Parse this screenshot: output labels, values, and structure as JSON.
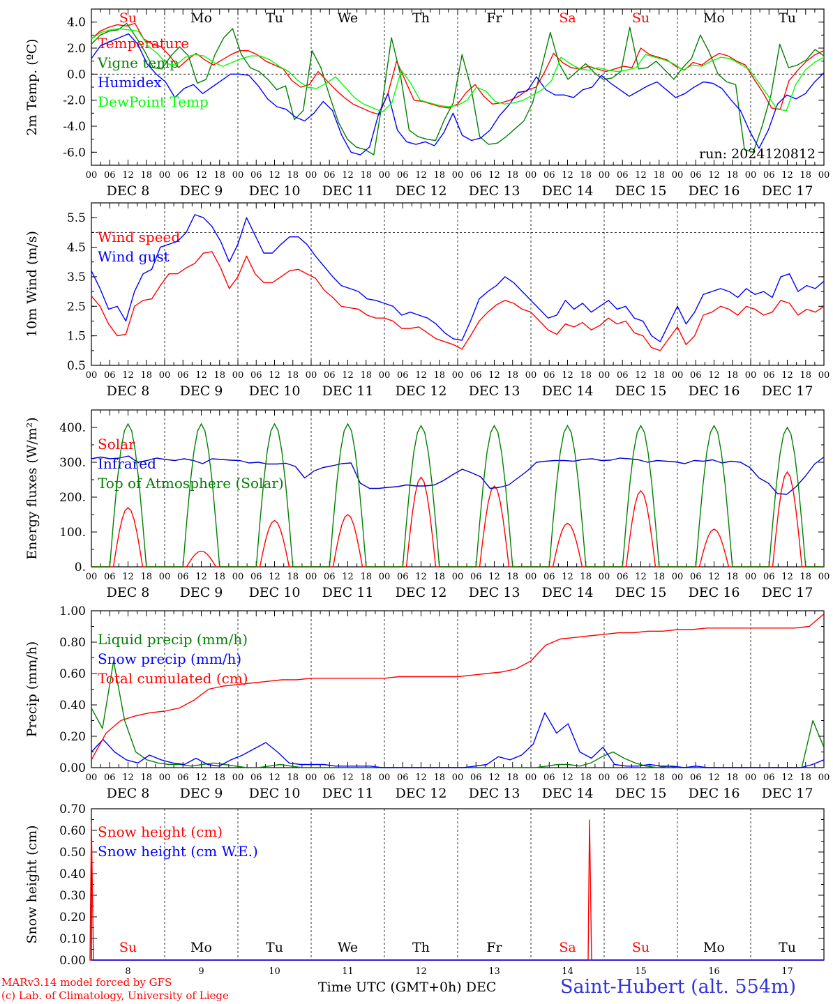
{
  "chart_data": [
    {
      "type": "line",
      "ylabel": "2m Temp. (ºC)",
      "ylim": [
        -7.0,
        5.0
      ],
      "yticks": [
        "4.0",
        "2.0",
        "0.0",
        "-2.0",
        "-4.0",
        "-6.0"
      ],
      "ytick_values": [
        4,
        2,
        0,
        -2,
        -4,
        -6
      ],
      "ref_lines": [
        0
      ],
      "day_names": [
        "Su",
        "Mo",
        "Tu",
        "We",
        "Th",
        "Fr",
        "Sa",
        "Su",
        "Mo",
        "Tu"
      ],
      "run_label": "run: 2024120812",
      "legend": "top-left",
      "series": [
        {
          "name": "Temperature",
          "color": "#ff0000",
          "values": [
            2.7,
            3.3,
            3.6,
            3.8,
            3.7,
            3.9,
            2.7,
            2.3,
            2.1,
            1.4,
            0.5,
            1.1,
            1.6,
            1.1,
            0.7,
            1.1,
            1.5,
            1.8,
            1.8,
            1.5,
            1.0,
            0.7,
            0.4,
            -0.5,
            -1.0,
            -0.8,
            0.2,
            -0.5,
            -1.2,
            -1.8,
            -2.3,
            -2.6,
            -2.9,
            -3.1,
            -1.5,
            1.0,
            -0.5,
            -2.0,
            -2.1,
            -2.3,
            -2.5,
            -2.6,
            -2.3,
            -1.4,
            -0.8,
            -1.7,
            -2.3,
            -2.2,
            -2.0,
            -1.7,
            -1.2,
            -1.0,
            0.2,
            1.6,
            0.9,
            0.5,
            0.4,
            0.6,
            0.4,
            0.2,
            0.4,
            0.6,
            0.5,
            2.0,
            1.5,
            1.3,
            1.1,
            0.6,
            0.3,
            0.9,
            0.7,
            1.2,
            1.6,
            1.4,
            1.0,
            0.7,
            -0.4,
            -1.4,
            -2.6,
            -2.7,
            -0.5,
            0.3,
            1.0,
            1.5,
            1.8
          ]
        },
        {
          "name": "Vigne temp",
          "color": "#008000",
          "values": [
            2.3,
            3.0,
            3.3,
            3.4,
            3.9,
            2.9,
            1.8,
            0.5,
            0.4,
            1.4,
            2.1,
            1.4,
            -0.7,
            -0.4,
            1.5,
            2.8,
            3.5,
            1.5,
            0.5,
            0.2,
            -0.4,
            -1.2,
            -0.9,
            -3.5,
            -2.8,
            1.8,
            0.5,
            -1.7,
            -3.7,
            -5.0,
            -5.6,
            -5.8,
            -6.2,
            -2.0,
            2.8,
            0.0,
            -4.3,
            -4.8,
            -5.0,
            -5.1,
            -3.5,
            -2.2,
            1.5,
            -1.0,
            -4.8,
            -5.4,
            -5.3,
            -4.8,
            -4.2,
            -3.6,
            -2.2,
            0.5,
            3.2,
            0.8,
            -0.4,
            0.2,
            0.8,
            0.1,
            -0.4,
            -0.3,
            0.2,
            3.6,
            0.4,
            0.5,
            1.0,
            0.3,
            -0.4,
            0.5,
            1.2,
            3.0,
            1.7,
            0.0,
            -0.6,
            -0.8,
            -5.8,
            -6.0,
            -4.0,
            -1.6,
            2.3,
            0.5,
            0.7,
            1.1,
            1.9,
            1.4
          ]
        },
        {
          "name": "Humidex",
          "color": "#0000ff",
          "values": [
            1.2,
            2.2,
            2.5,
            2.8,
            3.1,
            2.3,
            0.8,
            0.0,
            -0.6,
            -1.8,
            -1.1,
            -0.8,
            -1.5,
            -1.0,
            -0.5,
            0.0,
            0.0,
            -0.1,
            -0.9,
            -1.9,
            -2.5,
            -2.7,
            -3.3,
            -3.6,
            -3.0,
            -2.1,
            -2.8,
            -4.7,
            -6.0,
            -6.2,
            -5.6,
            -3.0,
            -1.5,
            -4.3,
            -5.2,
            -5.4,
            -5.2,
            -5.5,
            -4.5,
            -3.0,
            -4.7,
            -5.1,
            -4.9,
            -4.3,
            -3.2,
            -2.4,
            -1.4,
            -1.3,
            -0.2,
            -1.2,
            -1.6,
            -1.6,
            -1.8,
            -1.2,
            -1.0,
            -0.1,
            -0.7,
            -1.2,
            -1.7,
            -1.3,
            -0.9,
            -0.6,
            -1.2,
            -1.8,
            -1.5,
            -1.0,
            -0.6,
            -0.7,
            -1.1,
            -2.0,
            -2.8,
            -4.4,
            -5.7,
            -4.3,
            -2.3,
            -1.6,
            -1.9,
            -1.5,
            -0.6,
            0.1
          ]
        },
        {
          "name": "DewPoint Temp",
          "color": "#00ff00",
          "values": [
            2.7,
            3.2,
            3.4,
            3.5,
            3.4,
            3.3,
            2.2,
            1.6,
            0.8,
            0.7,
            1.3,
            1.5,
            1.4,
            0.9,
            0.6,
            0.9,
            1.2,
            1.4,
            1.4,
            1.1,
            0.6,
            0.2,
            -0.5,
            -1.0,
            -1.1,
            -0.7,
            -0.2,
            -1.0,
            -1.8,
            -2.3,
            -2.6,
            -2.9,
            -2.2,
            0.3,
            -0.7,
            -2.0,
            -2.2,
            -2.4,
            -2.5,
            -2.4,
            -2.0,
            -1.0,
            -1.3,
            -2.1,
            -2.3,
            -2.2,
            -2.0,
            -1.6,
            -1.2,
            -0.5,
            1.3,
            0.8,
            0.4,
            0.3,
            0.5,
            0.3,
            0.2,
            0.3,
            0.5,
            1.5,
            1.3,
            1.1,
            0.8,
            0.3,
            0.7,
            0.6,
            1.0,
            1.3,
            1.2,
            0.8,
            0.4,
            -0.6,
            -1.6,
            -2.7,
            -2.8,
            -0.8,
            0.3,
            0.9,
            1.3
          ]
        }
      ]
    },
    {
      "type": "line",
      "ylabel": "10m Wind (m/s)",
      "ylim": [
        0.5,
        6.0
      ],
      "yticks": [
        "5.5",
        "4.5",
        "3.5",
        "2.5",
        "1.5",
        "0.5"
      ],
      "ytick_values": [
        5.5,
        4.5,
        3.5,
        2.5,
        1.5,
        0.5
      ],
      "ref_lines": [
        5.0
      ],
      "legend": "top-left",
      "series": [
        {
          "name": "Wind speed",
          "color": "#ff0000",
          "values": [
            2.85,
            2.5,
            1.9,
            1.5,
            1.55,
            2.5,
            2.7,
            2.75,
            3.2,
            3.6,
            3.6,
            3.8,
            3.95,
            4.3,
            4.35,
            3.8,
            3.1,
            3.5,
            4.2,
            3.6,
            3.3,
            3.3,
            3.5,
            3.7,
            3.75,
            3.6,
            3.45,
            3.05,
            2.8,
            2.5,
            2.45,
            2.4,
            2.2,
            2.1,
            2.1,
            2.0,
            1.75,
            1.75,
            1.8,
            1.6,
            1.4,
            1.3,
            1.2,
            1.05,
            1.5,
            2.0,
            2.3,
            2.55,
            2.7,
            2.6,
            2.4,
            2.3,
            2.0,
            1.7,
            1.55,
            1.9,
            1.8,
            1.95,
            1.7,
            1.85,
            2.1,
            1.9,
            2.0,
            1.6,
            1.5,
            1.1,
            1.0,
            1.4,
            1.8,
            1.2,
            1.5,
            2.2,
            2.3,
            2.5,
            2.4,
            2.2,
            2.5,
            2.4,
            2.2,
            2.3,
            2.7,
            2.6,
            2.2,
            2.4,
            2.3,
            2.5
          ]
        },
        {
          "name": "Wind gust",
          "color": "#0000ff",
          "values": [
            3.7,
            3.1,
            2.4,
            2.5,
            2.0,
            3.0,
            3.6,
            3.75,
            4.5,
            4.6,
            4.7,
            5.0,
            5.6,
            5.5,
            5.2,
            4.7,
            4.0,
            4.6,
            5.5,
            4.9,
            4.3,
            4.3,
            4.6,
            4.85,
            4.85,
            4.6,
            4.2,
            3.85,
            3.5,
            3.2,
            3.1,
            3.0,
            2.75,
            2.7,
            2.6,
            2.5,
            2.2,
            2.3,
            2.2,
            2.1,
            1.9,
            1.6,
            1.4,
            1.35,
            2.0,
            2.75,
            3.0,
            3.2,
            3.5,
            3.3,
            3.0,
            2.7,
            2.4,
            2.1,
            2.2,
            2.7,
            2.4,
            2.6,
            2.3,
            2.5,
            2.7,
            2.4,
            2.5,
            2.1,
            2.0,
            1.5,
            1.3,
            1.9,
            2.5,
            1.9,
            2.3,
            2.9,
            3.0,
            3.1,
            3.0,
            2.8,
            3.1,
            2.9,
            3.0,
            2.8,
            3.5,
            3.6,
            3.0,
            3.2,
            3.1,
            3.35
          ]
        }
      ]
    },
    {
      "type": "line",
      "ylabel": "Energy fluxes (W/m²)",
      "ylim": [
        0,
        450
      ],
      "yticks": [
        "400.",
        "300.",
        "200.",
        "100.",
        "0."
      ],
      "ytick_values": [
        400,
        300,
        200,
        100,
        0
      ],
      "legend": "top-left",
      "series": [
        {
          "name": "Solar",
          "color": "#ff0000",
          "daily_peaks": [
            170,
            45,
            133,
            150,
            257,
            232,
            125,
            218,
            108,
            272
          ]
        },
        {
          "name": "Infrared",
          "color": "#0000cc",
          "values": [
            310,
            315,
            310,
            312,
            318,
            300,
            305,
            312,
            308,
            305,
            310,
            305,
            296,
            310,
            308,
            306,
            305,
            298,
            300,
            295,
            295,
            297,
            288,
            255,
            275,
            285,
            290,
            296,
            298,
            240,
            225,
            225,
            228,
            230,
            235,
            232,
            232,
            235,
            248,
            265,
            280,
            270,
            258,
            225,
            228,
            235,
            255,
            275,
            300,
            303,
            305,
            305,
            303,
            308,
            310,
            305,
            306,
            312,
            310,
            307,
            300,
            305,
            303,
            301,
            296,
            305,
            303,
            307,
            298,
            303,
            300,
            285,
            255,
            240,
            210,
            208,
            230,
            260,
            295,
            315
          ]
        },
        {
          "name": "Top of Atmosphere (Solar)",
          "color": "#008000",
          "daily_peaks": [
            410,
            410,
            410,
            410,
            405,
            405,
            405,
            405,
            405,
            400
          ]
        }
      ]
    },
    {
      "type": "line",
      "ylabel": "Precip (mm/h)",
      "ylim": [
        0,
        1.0
      ],
      "yticks": [
        "1.00",
        "0.80",
        "0.60",
        "0.40",
        "0.20",
        "0.00"
      ],
      "ytick_values": [
        1.0,
        0.8,
        0.6,
        0.4,
        0.2,
        0.0
      ],
      "legend": "top-left",
      "series": [
        {
          "name": "Liquid precip (mm/h)",
          "color": "#008000",
          "values": [
            0.38,
            0.25,
            0.68,
            0.3,
            0.1,
            0.05,
            0.03,
            0.02,
            0.02,
            0.01,
            0.02,
            0.03,
            0.02,
            0.01,
            0.0,
            0.0,
            0.01,
            0.02,
            0.01,
            0.0,
            0.0,
            0.0,
            0.0,
            0.0,
            0.0,
            0.0,
            0.0,
            0.0,
            0.0,
            0.0,
            0.0,
            0.0,
            0.0,
            0.0,
            0.0,
            0.0,
            0.0,
            0.0,
            0.0,
            0.0,
            0.0,
            0.01,
            0.02,
            0.02,
            0.01,
            0.03,
            0.07,
            0.1,
            0.06,
            0.03,
            0.01,
            0.0,
            0.01,
            0.0,
            0.0,
            0.0,
            0.0,
            0.0,
            0.0,
            0.0,
            0.0,
            0.0,
            0.0,
            0.0,
            0.0,
            0.3,
            0.13
          ]
        },
        {
          "name": "Snow precip (mm/h)",
          "color": "#0000ff",
          "values": [
            0.1,
            0.18,
            0.1,
            0.05,
            0.03,
            0.08,
            0.05,
            0.03,
            0.02,
            0.06,
            0.02,
            0.01,
            0.05,
            0.08,
            0.12,
            0.16,
            0.1,
            0.03,
            0.02,
            0.02,
            0.02,
            0.01,
            0.01,
            0.01,
            0.01,
            0.0,
            0.0,
            0.0,
            0.0,
            0.0,
            0.0,
            0.0,
            0.0,
            0.01,
            0.02,
            0.07,
            0.05,
            0.08,
            0.15,
            0.35,
            0.22,
            0.28,
            0.1,
            0.06,
            0.13,
            0.02,
            0.01,
            0.01,
            0.02,
            0.01,
            0.01,
            0.0,
            0.01,
            0.0,
            0.0,
            0.0,
            0.0,
            0.0,
            0.0,
            0.0,
            0.0,
            0.0,
            0.02,
            0.05
          ]
        },
        {
          "name": "Total cumulated (cm)",
          "color": "#ff0000",
          "values": [
            0.05,
            0.22,
            0.3,
            0.33,
            0.35,
            0.36,
            0.38,
            0.43,
            0.5,
            0.52,
            0.53,
            0.54,
            0.55,
            0.56,
            0.56,
            0.57,
            0.57,
            0.57,
            0.57,
            0.57,
            0.57,
            0.58,
            0.58,
            0.58,
            0.58,
            0.58,
            0.59,
            0.6,
            0.61,
            0.63,
            0.68,
            0.78,
            0.82,
            0.83,
            0.84,
            0.85,
            0.86,
            0.86,
            0.87,
            0.87,
            0.88,
            0.88,
            0.89,
            0.89,
            0.89,
            0.89,
            0.89,
            0.89,
            0.89,
            0.9,
            0.98
          ]
        }
      ]
    },
    {
      "type": "line",
      "ylabel": "Snow height (cm)",
      "ylim": [
        0,
        0.7
      ],
      "yticks": [
        "0.70",
        "0.60",
        "0.50",
        "0.40",
        "0.30",
        "0.20",
        "0.10",
        "0.00"
      ],
      "ytick_values": [
        0.7,
        0.6,
        0.5,
        0.4,
        0.3,
        0.2,
        0.1,
        0.0
      ],
      "legend": "top-left",
      "day_names": [
        "Su",
        "Mo",
        "Tu",
        "We",
        "Th",
        "Fr",
        "Sa",
        "Su",
        "Mo",
        "Tu"
      ],
      "day_numbers": [
        "8",
        "9",
        "10",
        "11",
        "12",
        "13",
        "14",
        "15",
        "16",
        "17"
      ],
      "series": [
        {
          "name": "Snow height (cm)",
          "color": "#ff0000",
          "spikes": [
            {
              "day": 0.0,
              "value": 0.63
            },
            {
              "day": 6.8,
              "value": 0.65
            }
          ]
        },
        {
          "name": "Snow height (cm W.E.)",
          "color": "#0000ff",
          "values": [
            0.0,
            0.0
          ]
        }
      ]
    }
  ],
  "x_axis": {
    "hour_ticks": [
      "00",
      "06",
      "12",
      "18"
    ],
    "end_tick": "00",
    "date_labels": [
      "DEC  8",
      "DEC  9",
      "DEC 10",
      "DEC 11",
      "DEC 12",
      "DEC 13",
      "DEC 14",
      "DEC 15",
      "DEC 16",
      "DEC 17"
    ],
    "xlabel": "Time UTC (GMT+0h)",
    "xlabel_suffix": "DEC"
  },
  "weekend_color": "#ff0000",
  "footer": {
    "credit_line1": "MARv3.14 model forced by GFS",
    "credit_line2": "(c) Lab. of Climatology, University of Liege",
    "station": "Saint-Hubert (alt. 554m)"
  }
}
